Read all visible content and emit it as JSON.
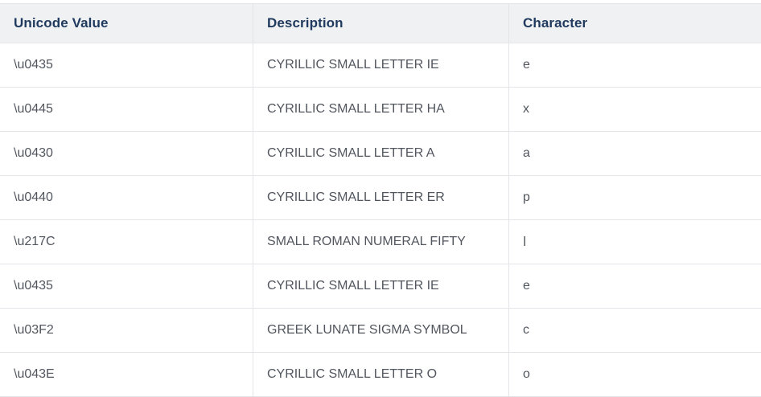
{
  "colors": {
    "header_bg": "#eff1f3",
    "header_text": "#1f3a5e",
    "body_text": "#51565e",
    "border": "#e3e5e8",
    "row_bg": "#ffffff",
    "page_bg": "#ffffff"
  },
  "table": {
    "columns": [
      {
        "label": "Unicode Value"
      },
      {
        "label": "Description"
      },
      {
        "label": "Character"
      }
    ],
    "rows": [
      {
        "unicode_value": "\\u0435",
        "description": "CYRILLIC SMALL LETTER IE",
        "character": "е"
      },
      {
        "unicode_value": "\\u0445",
        "description": "CYRILLIC SMALL LETTER HA",
        "character": "х"
      },
      {
        "unicode_value": "\\u0430",
        "description": "CYRILLIC SMALL LETTER A",
        "character": "а"
      },
      {
        "unicode_value": "\\u0440",
        "description": "CYRILLIC SMALL LETTER ER",
        "character": "р"
      },
      {
        "unicode_value": "\\u217C",
        "description": "SMALL ROMAN NUMERAL FIFTY",
        "character": "ⅼ"
      },
      {
        "unicode_value": "\\u0435",
        "description": "CYRILLIC SMALL LETTER IE",
        "character": "е"
      },
      {
        "unicode_value": "\\u03F2",
        "description": "GREEK LUNATE SIGMA SYMBOL",
        "character": "ϲ"
      },
      {
        "unicode_value": "\\u043E",
        "description": "CYRILLIC SMALL LETTER O",
        "character": "о"
      }
    ]
  }
}
